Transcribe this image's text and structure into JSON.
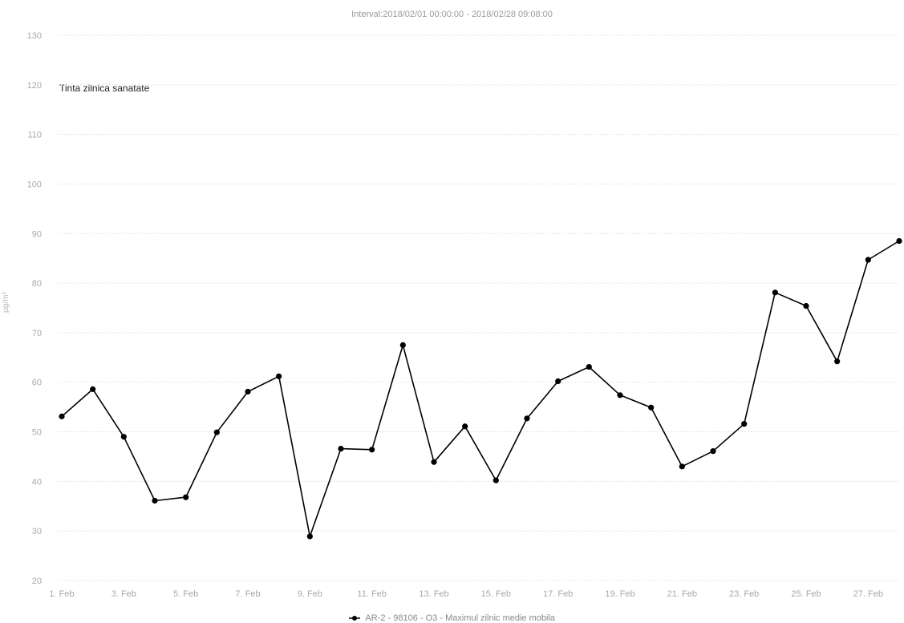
{
  "chart_data": {
    "type": "line",
    "subtitle": "Interval:2018/02/01 00:00:00 - 2018/02/28 09:08:00",
    "ylabel": "µg/m³",
    "ylim": [
      20,
      130
    ],
    "yticks": [
      20,
      30,
      40,
      50,
      60,
      70,
      80,
      90,
      100,
      110,
      120,
      130
    ],
    "x_tick_labels": [
      "1. Feb",
      "3. Feb",
      "5. Feb",
      "7. Feb",
      "9. Feb",
      "11. Feb",
      "13. Feb",
      "15. Feb",
      "17. Feb",
      "19. Feb",
      "21. Feb",
      "23. Feb",
      "25. Feb",
      "27. Feb"
    ],
    "target_line": {
      "label": "Tinta zilnica sanatate",
      "value": 120
    },
    "grid": true,
    "legend_position": "bottom-center",
    "series": [
      {
        "name": "AR-2 - 98106 - O3 - Maximul zilnic medie mobila",
        "color": "#000000",
        "x": [
          "2018-02-01",
          "2018-02-02",
          "2018-02-03",
          "2018-02-04",
          "2018-02-05",
          "2018-02-06",
          "2018-02-07",
          "2018-02-08",
          "2018-02-09",
          "2018-02-10",
          "2018-02-11",
          "2018-02-12",
          "2018-02-13",
          "2018-02-14",
          "2018-02-15",
          "2018-02-16",
          "2018-02-17",
          "2018-02-18",
          "2018-02-19",
          "2018-02-20",
          "2018-02-21",
          "2018-02-22",
          "2018-02-23",
          "2018-02-24",
          "2018-02-25",
          "2018-02-26",
          "2018-02-27",
          "2018-02-28"
        ],
        "values": [
          53.1,
          58.6,
          49.0,
          36.1,
          36.8,
          49.9,
          58.1,
          61.2,
          28.9,
          46.6,
          46.4,
          67.5,
          43.9,
          51.1,
          40.2,
          52.7,
          60.2,
          63.1,
          57.4,
          54.9,
          43.0,
          46.1,
          51.6,
          78.1,
          75.4,
          64.2,
          84.7,
          88.5
        ]
      }
    ]
  }
}
